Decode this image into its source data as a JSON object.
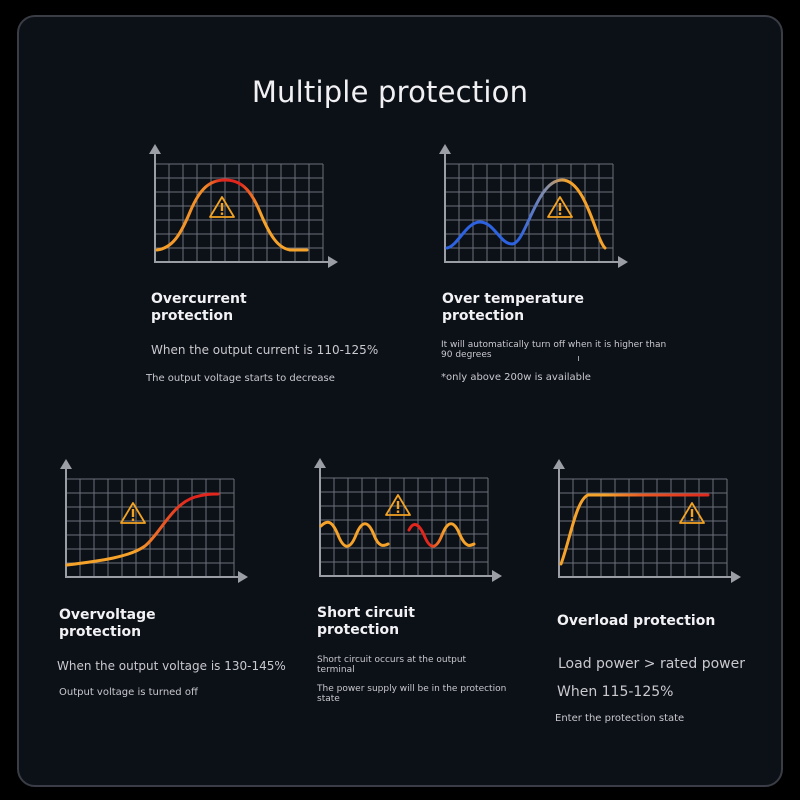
{
  "title": "Multiple protection",
  "colors": {
    "background": "#0c1017",
    "grid": "#6d7079",
    "curve_orange": "#f5a22b",
    "curve_red": "#e0261d",
    "curve_blue": "#2d63e0",
    "warning": "#f2a324"
  },
  "icons": {
    "warning": "warning-triangle-icon"
  },
  "cards": {
    "overcurrent": {
      "heading_line1": "Overcurrent",
      "heading_line2": "protection",
      "desc1": "When the output current is 110-125%",
      "desc2": "The output voltage starts to decrease"
    },
    "over_temperature": {
      "heading_line1": "Over temperature",
      "heading_line2": "protection",
      "desc1_line1": "It will automatically turn off when it is higher than",
      "desc1_line2": "90 degrees",
      "desc2": "*only above 200w is available"
    },
    "overvoltage": {
      "heading_line1": "Overvoltage",
      "heading_line2": "protection",
      "desc1": "When the output voltage is 130-145%",
      "desc2": "Output voltage is turned off"
    },
    "short_circuit": {
      "heading_line1": "Short circuit",
      "heading_line2": "protection",
      "desc1_line1": "Short circuit occurs at the output",
      "desc1_line2": "terminal",
      "desc2_line1": "The power supply will be in the protection",
      "desc2_line2": "state"
    },
    "overload": {
      "heading": "Overload protection",
      "desc1": "Load power > rated power",
      "desc2": "When 115-125%",
      "desc3": "Enter the protection state"
    }
  }
}
